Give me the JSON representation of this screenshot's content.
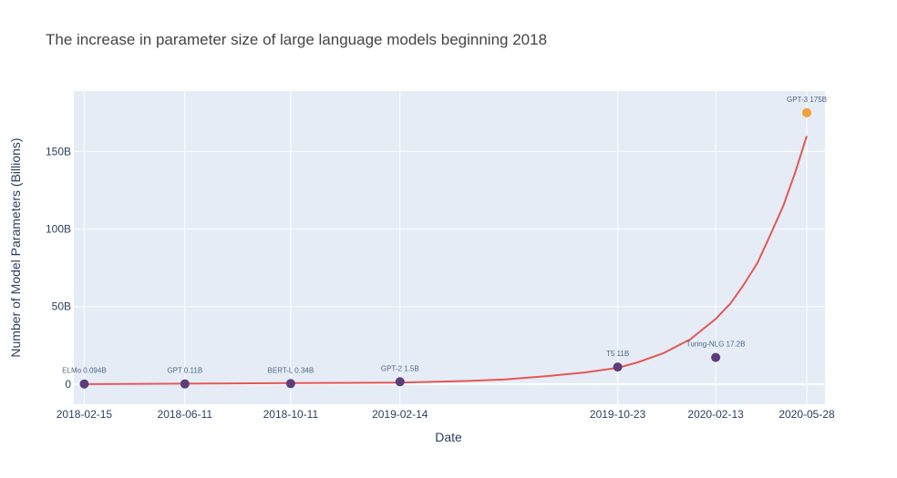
{
  "chart_data": {
    "type": "scatter",
    "title": "The increase in parameter size of large language models beginning 2018",
    "xlabel": "Date",
    "ylabel": "Number of Model Parameters (Billions)",
    "x_axis_type": "date",
    "xlim": [
      "2018-02-03",
      "2020-06-18"
    ],
    "ylim": [
      -13,
      189
    ],
    "x_ticks": [
      "2018-02-15",
      "2018-06-11",
      "2018-10-11",
      "2019-02-14",
      "2019-10-23",
      "2020-02-13",
      "2020-05-28"
    ],
    "y_ticks": [
      0,
      50,
      100,
      150
    ],
    "y_tick_labels": [
      "0",
      "50B",
      "100B",
      "150B"
    ],
    "grid": true,
    "legend": "none",
    "colors": {
      "plot_bg": "#e5ecf6",
      "grid": "#ffffff",
      "point_default": "#5c3d7a",
      "point_highlight": "#f0a035",
      "trend_line": "#e45756",
      "label_text": "#506784",
      "axis_text": "#2a3f5f",
      "title_text": "#444444"
    },
    "series": [
      {
        "kind": "points",
        "x": [
          "2018-02-15",
          "2018-06-11",
          "2018-10-11",
          "2019-02-14",
          "2019-10-23",
          "2020-02-13",
          "2020-05-28"
        ],
        "y": [
          0.094,
          0.11,
          0.34,
          1.5,
          11,
          17.2,
          175
        ],
        "labels": [
          "ELMo 0.094B",
          "GPT 0.11B",
          "BERT-L 0.34B",
          "GPT-2 1.5B",
          "T5 11B",
          "Turing-NLG 17.2B",
          "GPT-3 175B"
        ],
        "highlight": [
          false,
          false,
          false,
          false,
          false,
          false,
          true
        ]
      },
      {
        "kind": "trend",
        "x": [
          "2018-02-15",
          "2018-06-11",
          "2018-10-11",
          "2019-02-14",
          "2019-04-30",
          "2019-06-15",
          "2019-08-01",
          "2019-09-15",
          "2019-10-23",
          "2019-11-15",
          "2019-12-15",
          "2020-01-15",
          "2020-02-13",
          "2020-03-01",
          "2020-03-15",
          "2020-04-01",
          "2020-04-15",
          "2020-05-01",
          "2020-05-15",
          "2020-05-28"
        ],
        "y": [
          0.0,
          0.3,
          0.6,
          1.0,
          2.0,
          3.0,
          5.0,
          7.5,
          10.5,
          14,
          20,
          29,
          42,
          52,
          63,
          78,
          95,
          115,
          137,
          160
        ]
      }
    ]
  }
}
